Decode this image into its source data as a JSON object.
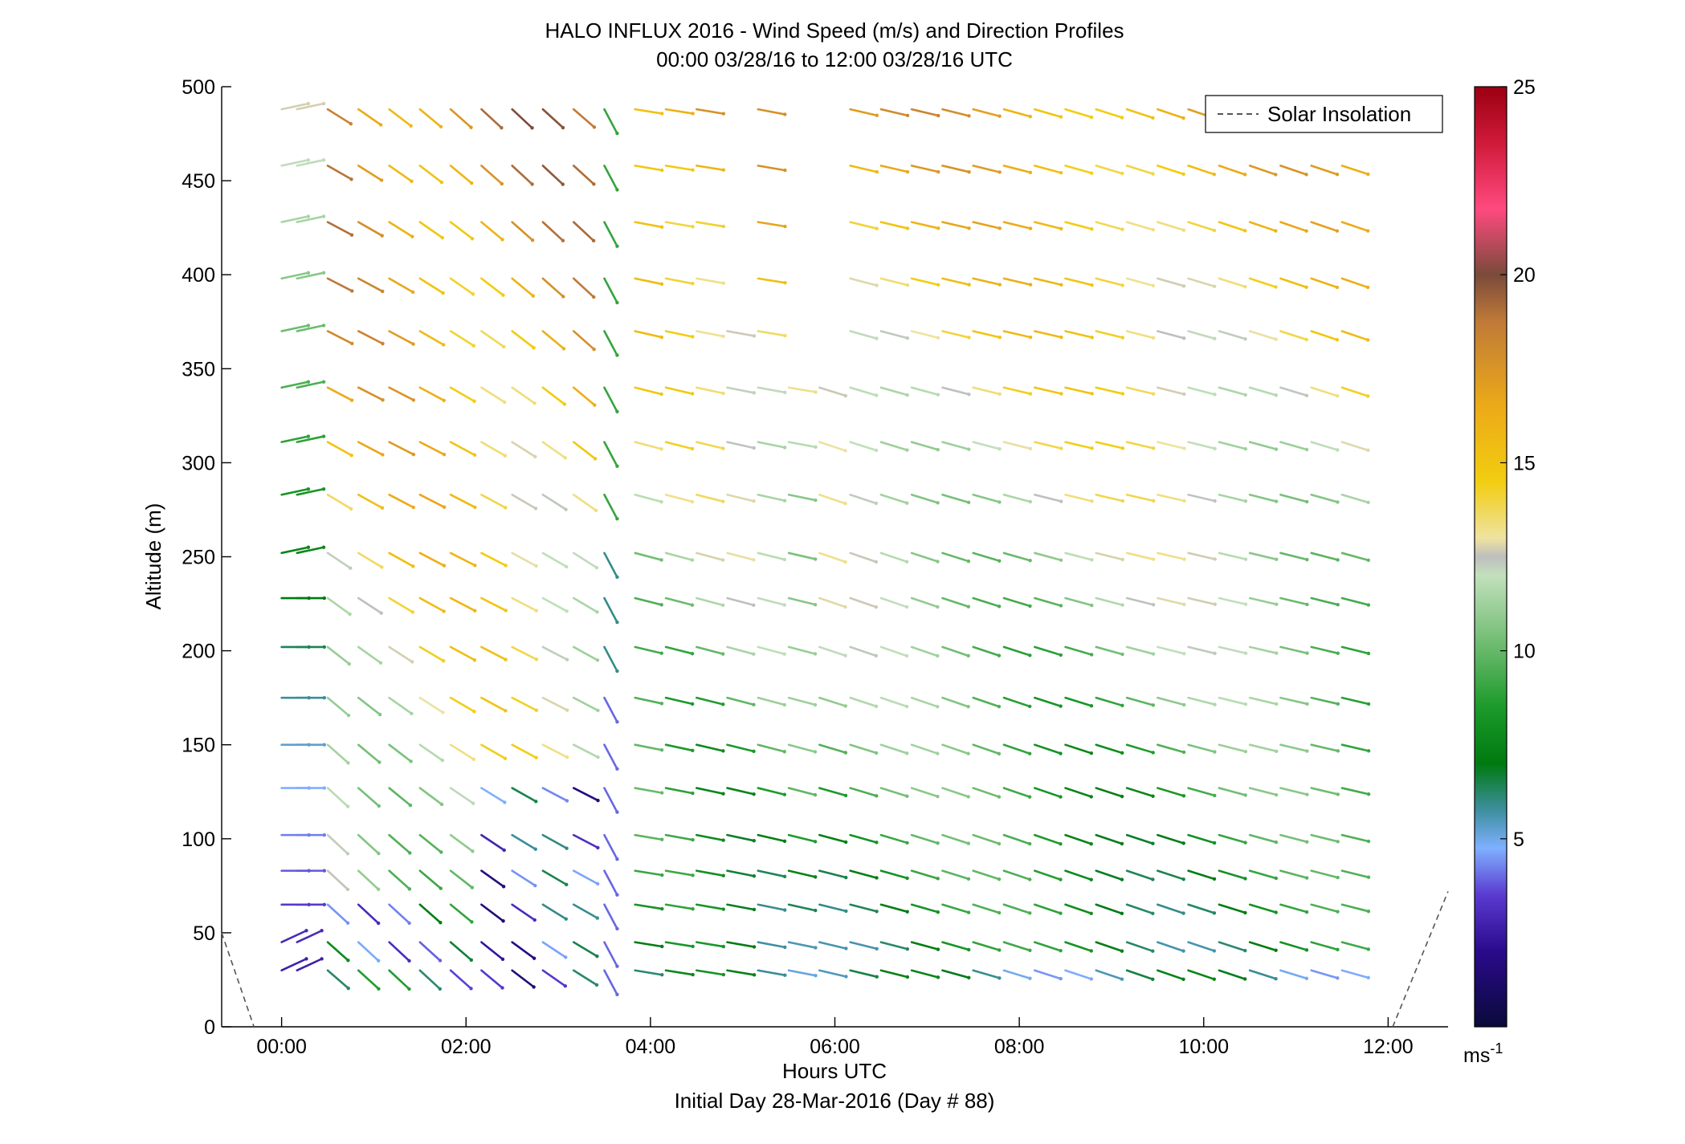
{
  "chart_data": {
    "type": "wind-barb-profile",
    "title": "HALO INFLUX 2016 - Wind Speed (m/s) and Direction Profiles",
    "subtitle": "00:00 03/28/16 to 12:00 03/28/16  UTC",
    "xlabel": "Hours UTC",
    "xlabel2": "Initial Day 28-Mar-2016 (Day # 88)",
    "ylabel": "Altitude (m)",
    "xlim": [
      -0.65,
      12.65
    ],
    "ylim": [
      0,
      500
    ],
    "x_ticks": [
      0,
      2,
      4,
      6,
      8,
      10,
      12
    ],
    "x_tick_labels": [
      "00:00",
      "02:00",
      "04:00",
      "06:00",
      "08:00",
      "10:00",
      "12:00"
    ],
    "y_ticks": [
      0,
      50,
      100,
      150,
      200,
      250,
      300,
      350,
      400,
      450,
      500
    ],
    "y_tick_labels": [
      "0",
      "50",
      "100",
      "150",
      "200",
      "250",
      "300",
      "350",
      "400",
      "450",
      "500"
    ],
    "legend": {
      "label": "Solar Insolation",
      "style": "dashed",
      "color": "#555555",
      "placement": "top-right"
    },
    "colorbar": {
      "min": 0,
      "max": 25,
      "ticks": [
        5,
        10,
        15,
        20,
        25
      ],
      "tick_labels": [
        "5",
        "10",
        "15",
        "20",
        "25"
      ],
      "unit_base": "ms",
      "unit_exp": "-1"
    },
    "solar_insolation": [
      {
        "x": [
          -0.65,
          -0.3
        ],
        "y": [
          50,
          0
        ]
      },
      {
        "x": [
          12.05,
          12.65
        ],
        "y": [
          0,
          72
        ]
      }
    ],
    "altitudes": [
      30,
      45,
      65,
      83,
      102,
      127,
      150,
      175,
      202,
      228,
      252,
      283,
      311,
      340,
      370,
      398,
      428,
      458,
      488
    ],
    "time_hours": [
      0,
      0.167,
      0.5,
      0.833,
      1.167,
      1.5,
      1.833,
      2.167,
      2.5,
      2.833,
      3.167,
      3.5,
      3.833,
      4.167,
      4.5,
      4.833,
      5.167,
      5.5,
      5.833,
      6.167,
      6.5,
      6.833,
      7.167,
      7.5,
      7.833,
      8.167,
      8.5,
      8.833,
      9.167,
      9.5,
      9.833,
      10.167,
      10.5,
      10.833,
      11.167,
      11.5
    ]
  }
}
